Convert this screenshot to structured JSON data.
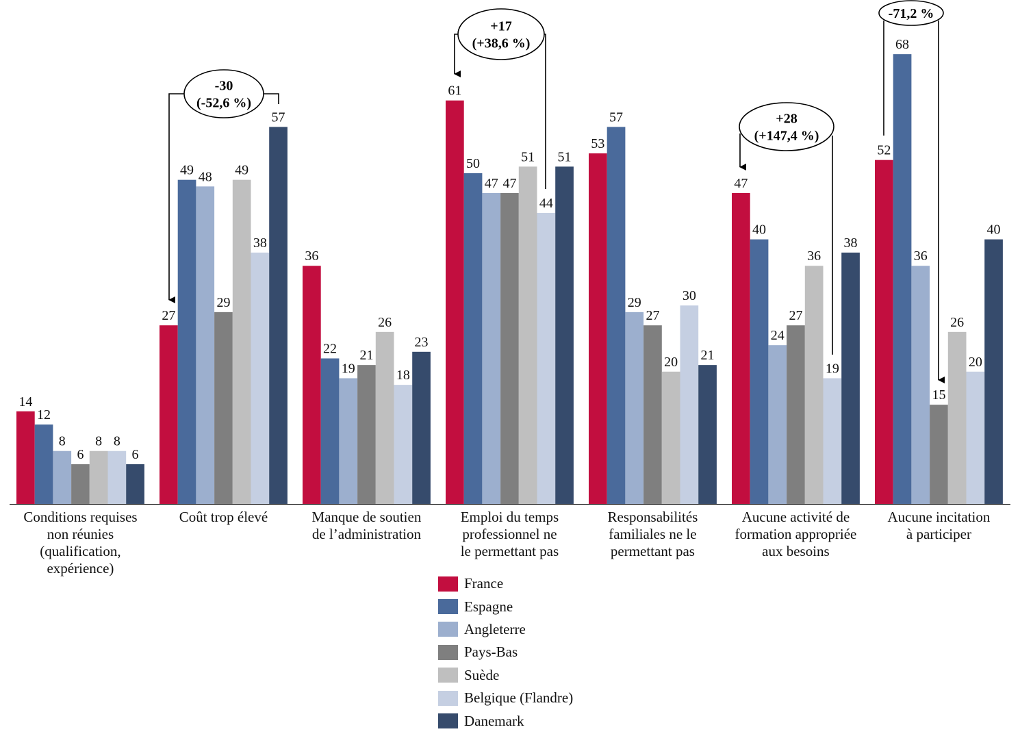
{
  "chart_data": {
    "type": "bar",
    "title": "",
    "xlabel": "",
    "ylabel": "",
    "ylim": [
      0,
      70
    ],
    "grid": false,
    "legend_position": "bottom-center",
    "categories": [
      "Conditions requises non réunies (qualification, expérience)",
      "Coût trop élevé",
      "Manque de soutien de l’administration",
      "Emploi du temps professionnel ne le permettant pas",
      "Responsabilités familiales ne le permettant pas",
      "Aucune activité de formation appropriée aux besoins",
      "Aucune incitation à participer"
    ],
    "category_lines": [
      [
        "Conditions requises",
        "non réunies",
        "(qualification,",
        "expérience)"
      ],
      [
        "Coût trop élevé"
      ],
      [
        "Manque de soutien",
        "de l’administration"
      ],
      [
        "Emploi du temps",
        "professionnel ne",
        "le permettant pas"
      ],
      [
        "Responsabilités",
        "familiales ne le",
        "permettant pas"
      ],
      [
        "Aucune activité de",
        "formation appropriée",
        "aux besoins"
      ],
      [
        "Aucune incitation",
        "à participer"
      ]
    ],
    "series": [
      {
        "name": "France",
        "color": "#C20E3F",
        "values": [
          14,
          27,
          36,
          61,
          53,
          47,
          52
        ]
      },
      {
        "name": "Espagne",
        "color": "#4A6A9B",
        "values": [
          12,
          49,
          22,
          50,
          57,
          40,
          68
        ]
      },
      {
        "name": "Angleterre",
        "color": "#9CAFCE",
        "values": [
          8,
          48,
          19,
          47,
          29,
          24,
          36
        ]
      },
      {
        "name": "Pays-Bas",
        "color": "#7F7F7F",
        "values": [
          6,
          29,
          21,
          47,
          27,
          27,
          15
        ]
      },
      {
        "name": "Suède",
        "color": "#BFBFBF",
        "values": [
          8,
          49,
          26,
          51,
          20,
          36,
          26
        ]
      },
      {
        "name": "Belgique (Flandre)",
        "color": "#C5CFE2",
        "values": [
          8,
          38,
          18,
          44,
          30,
          19,
          20
        ]
      },
      {
        "name": "Danemark",
        "color": "#364B6C",
        "values": [
          6,
          57,
          23,
          51,
          21,
          38,
          40
        ]
      }
    ],
    "annotations": [
      {
        "category_index": 1,
        "lines": [
          "-30",
          "(-52,6 %)"
        ]
      },
      {
        "category_index": 3,
        "lines": [
          "+17",
          "(+38,6 %)"
        ]
      },
      {
        "category_index": 5,
        "lines": [
          "+28",
          "(+147,4 %)"
        ]
      },
      {
        "category_index": 6,
        "lines": [
          "-71,2 %"
        ]
      }
    ]
  }
}
